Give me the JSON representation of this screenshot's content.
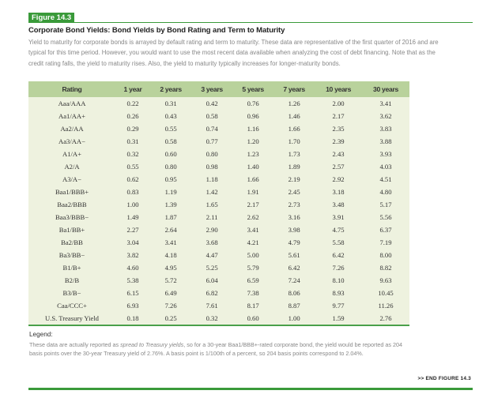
{
  "figure": {
    "label": "Figure 14.3",
    "title": "Corporate Bond Yields: Bond Yields by Bond Rating and Term to Maturity",
    "description": "Yield to maturity for corporate bonds is arrayed by default rating and term to maturity. These data are representative of the first quarter of 2016 and are typical for this time period. However, you would want to use the most recent data available when analyzing the cost of debt financing. Note that as the credit rating falls, the yield to maturity rises. Also, the yield to maturity typically increases for longer-maturity bonds."
  },
  "table": {
    "headers": [
      "Rating",
      "1 year",
      "2 years",
      "3 years",
      "5 years",
      "7 years",
      "10 years",
      "30 years"
    ],
    "rows": [
      [
        "Aaa/AAA",
        "0.22",
        "0.31",
        "0.42",
        "0.76",
        "1.26",
        "2.00",
        "3.41"
      ],
      [
        "Aa1/AA+",
        "0.26",
        "0.43",
        "0.58",
        "0.96",
        "1.46",
        "2.17",
        "3.62"
      ],
      [
        "Aa2/AA",
        "0.29",
        "0.55",
        "0.74",
        "1.16",
        "1.66",
        "2.35",
        "3.83"
      ],
      [
        "Aa3/AA−",
        "0.31",
        "0.58",
        "0.77",
        "1.20",
        "1.70",
        "2.39",
        "3.88"
      ],
      [
        "A1/A+",
        "0.32",
        "0.60",
        "0.80",
        "1.23",
        "1.73",
        "2.43",
        "3.93"
      ],
      [
        "A2/A",
        "0.55",
        "0.80",
        "0.98",
        "1.40",
        "1.89",
        "2.57",
        "4.03"
      ],
      [
        "A3/A−",
        "0.62",
        "0.95",
        "1.18",
        "1.66",
        "2.19",
        "2.92",
        "4.51"
      ],
      [
        "Baa1/BBB+",
        "0.83",
        "1.19",
        "1.42",
        "1.91",
        "2.45",
        "3.18",
        "4.80"
      ],
      [
        "Baa2/BBB",
        "1.00",
        "1.39",
        "1.65",
        "2.17",
        "2.73",
        "3.48",
        "5.17"
      ],
      [
        "Baa3/BBB−",
        "1.49",
        "1.87",
        "2.11",
        "2.62",
        "3.16",
        "3.91",
        "5.56"
      ],
      [
        "Ba1/BB+",
        "2.27",
        "2.64",
        "2.90",
        "3.41",
        "3.98",
        "4.75",
        "6.37"
      ],
      [
        "Ba2/BB",
        "3.04",
        "3.41",
        "3.68",
        "4.21",
        "4.79",
        "5.58",
        "7.19"
      ],
      [
        "Ba3/BB−",
        "3.82",
        "4.18",
        "4.47",
        "5.00",
        "5.61",
        "6.42",
        "8.00"
      ],
      [
        "B1/B+",
        "4.60",
        "4.95",
        "5.25",
        "5.79",
        "6.42",
        "7.26",
        "8.82"
      ],
      [
        "B2/B",
        "5.38",
        "5.72",
        "6.04",
        "6.59",
        "7.24",
        "8.10",
        "9.63"
      ],
      [
        "B3/B−",
        "6.15",
        "6.49",
        "6.82",
        "7.38",
        "8.06",
        "8.93",
        "10.45"
      ],
      [
        "Caa/CCC+",
        "6.93",
        "7.26",
        "7.61",
        "8.17",
        "8.87",
        "9.77",
        "11.26"
      ],
      [
        "U.S. Treasury Yield",
        "0.18",
        "0.25",
        "0.32",
        "0.60",
        "1.00",
        "1.59",
        "2.76"
      ]
    ]
  },
  "legend": {
    "heading": "Legend:",
    "text_before": "These data are actually reported as ",
    "text_italic": "spread to Treasury yields",
    "text_after": ", so for a 30-year Baa1/BBB+-rated corporate bond, the yield would be reported as 204 basis points over the 30-year Treasury yield of 2.76%. A basis point is 1/100th of a percent, so 204 basis points correspond to 2.04%."
  },
  "end_marker": ">> END FIGURE 14.3",
  "colors": {
    "accent_green": "#3a9a3a",
    "header_bg": "#b9d29c",
    "table_bg": "#eef2df"
  }
}
